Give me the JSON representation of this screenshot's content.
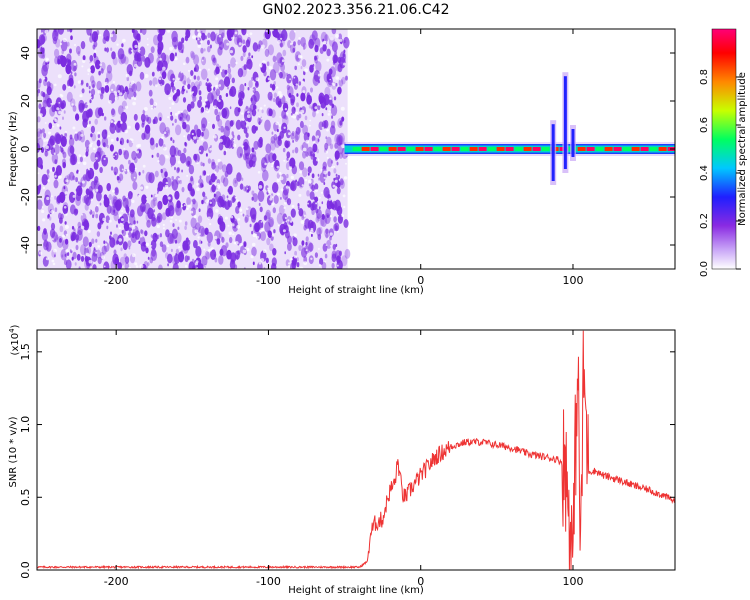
{
  "page_title": "GN02.2023.356.21.06.C42",
  "colors": {
    "spectrogram_noise": "#7a2be0",
    "snr_line": "#ee3333",
    "colormap": [
      "#ffffff",
      "#c9a6f7",
      "#8a2be2",
      "#1f1fff",
      "#00c8ff",
      "#00ff60",
      "#c8ff00",
      "#ff8800",
      "#ff0000",
      "#ff0077"
    ]
  },
  "chart_data": [
    {
      "type": "heatmap",
      "title": "GN02.2023.356.21.06.C42",
      "xlabel": "Height of straight line (km)",
      "ylabel": "Frequency (Hz)",
      "xlim": [
        -252,
        167
      ],
      "ylim": [
        -50,
        50
      ],
      "x_ticks": [
        -200,
        -100,
        0,
        100
      ],
      "y_ticks": [
        -40,
        -20,
        0,
        20,
        40
      ],
      "noise_region_x": [
        -252,
        -48
      ],
      "signal_ridge": {
        "x_start": -50,
        "x_end": 167,
        "frequency": 0,
        "features": [
          {
            "x": 87,
            "f_range": [
              -15,
              12
            ]
          },
          {
            "x": 95,
            "f_range": [
              -10,
              32
            ]
          },
          {
            "x": 100,
            "f_range": [
              -5,
              10
            ]
          }
        ]
      },
      "colorbar": {
        "label": "Normalized spectral amplitude",
        "range": [
          0,
          1
        ],
        "ticks": [
          "0.0",
          "0.2",
          "0.4",
          "0.6",
          "0.8"
        ],
        "position": "right"
      },
      "grid": false
    },
    {
      "type": "line",
      "xlabel": "Height of straight line (km)",
      "ylabel": "SNR (10 * v/v)",
      "y_multiplier": "(x10^4)",
      "xlim": [
        -252,
        167
      ],
      "ylim": [
        0,
        1.65
      ],
      "x_ticks": [
        -200,
        -100,
        0,
        100
      ],
      "y_ticks": [
        "0.0",
        "0.5",
        "1.0",
        "1.5"
      ],
      "series": [
        {
          "x": [
            -252,
            -200,
            -150,
            -100,
            -60,
            -40,
            -35,
            -33,
            -30,
            -25,
            -22,
            -20,
            -17,
            -15,
            -12,
            -10,
            -5,
            0,
            10,
            20,
            30,
            40,
            50,
            60,
            70,
            80,
            90,
            95,
            97,
            100,
            103,
            105,
            107,
            110,
            115,
            120,
            130,
            140,
            150,
            160,
            167
          ],
          "y": [
            0.02,
            0.02,
            0.02,
            0.02,
            0.02,
            0.02,
            0.06,
            0.25,
            0.32,
            0.35,
            0.48,
            0.55,
            0.6,
            0.75,
            0.52,
            0.5,
            0.58,
            0.65,
            0.78,
            0.85,
            0.88,
            0.88,
            0.86,
            0.84,
            0.8,
            0.78,
            0.76,
            0.72,
            0.45,
            0.05,
            1.5,
            0.1,
            1.4,
            0.68,
            0.68,
            0.65,
            0.62,
            0.58,
            0.55,
            0.51,
            0.47
          ]
        }
      ],
      "grid": false
    }
  ]
}
